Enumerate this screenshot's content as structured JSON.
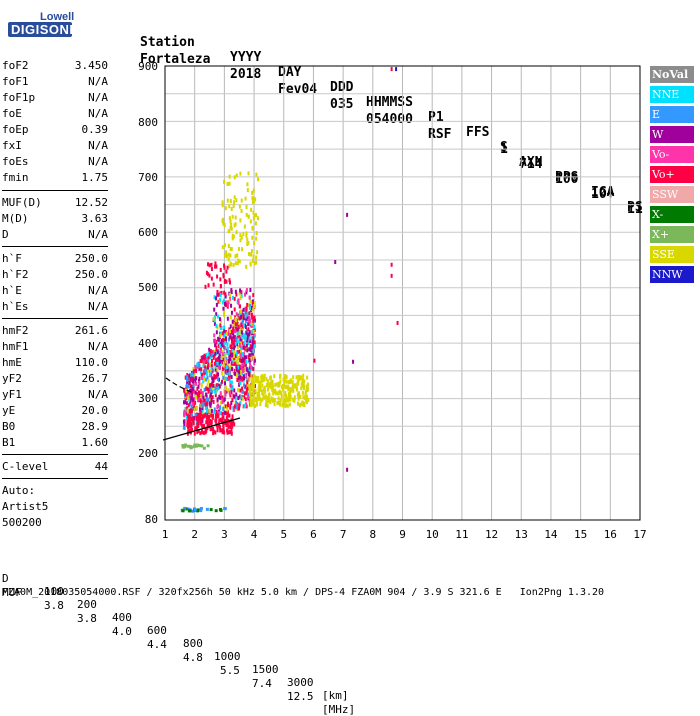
{
  "logo": {
    "line1": "Lowell",
    "line2": "DIGISONDE"
  },
  "header": {
    "labels": [
      "Station",
      "YYYY",
      "DAY",
      "DDD",
      "HHMMSS",
      "P1",
      "FFS",
      "S",
      "AXN",
      "PPS",
      "IGA",
      "PS"
    ],
    "values": [
      "Fortaleza",
      "2018",
      "Fev04",
      "035",
      "054000",
      "RSF",
      "1",
      "714",
      "100",
      "10+",
      "11"
    ]
  },
  "params": {
    "group1": [
      {
        "name": "foF2",
        "value": "3.450"
      },
      {
        "name": "foF1",
        "value": "N/A"
      },
      {
        "name": "foF1p",
        "value": "N/A"
      },
      {
        "name": "foE",
        "value": "N/A"
      },
      {
        "name": "foEp",
        "value": "0.39"
      },
      {
        "name": "fxI",
        "value": "N/A"
      },
      {
        "name": "foEs",
        "value": "N/A"
      },
      {
        "name": "fmin",
        "value": "1.75"
      }
    ],
    "group2": [
      {
        "name": "MUF(D)",
        "value": "12.52"
      },
      {
        "name": "M(D)",
        "value": "3.63"
      },
      {
        "name": "D",
        "value": "N/A"
      }
    ],
    "group3": [
      {
        "name": "h`F",
        "value": "250.0"
      },
      {
        "name": "h`F2",
        "value": "250.0"
      },
      {
        "name": "h`E",
        "value": "N/A"
      },
      {
        "name": "h`Es",
        "value": "N/A"
      }
    ],
    "group4": [
      {
        "name": "hmF2",
        "value": "261.6"
      },
      {
        "name": "hmF1",
        "value": "N/A"
      },
      {
        "name": "hmE",
        "value": "110.0"
      },
      {
        "name": "yF2",
        "value": "26.7"
      },
      {
        "name": "yF1",
        "value": "N/A"
      },
      {
        "name": "yE",
        "value": "20.0"
      },
      {
        "name": "B0",
        "value": "28.9"
      },
      {
        "name": "B1",
        "value": "1.60"
      }
    ],
    "clevel": {
      "name": "C-level",
      "value": "44"
    },
    "auto": [
      "Auto:",
      "Artist5",
      "500200"
    ]
  },
  "legend": [
    {
      "label": "NoVal",
      "color": "#8c8c8c"
    },
    {
      "label": "NNE",
      "color": "#00e0ff"
    },
    {
      "label": "E",
      "color": "#3399ff"
    },
    {
      "label": "W",
      "color": "#a0009c"
    },
    {
      "label": "Vo-",
      "color": "#ff33aa"
    },
    {
      "label": "Vo+",
      "color": "#ff0044"
    },
    {
      "label": "SSW",
      "color": "#f0a8a8"
    },
    {
      "label": "X-",
      "color": "#007a00"
    },
    {
      "label": "X+",
      "color": "#7ab85a"
    },
    {
      "label": "SSE",
      "color": "#d8d800"
    },
    {
      "label": "NNW",
      "color": "#1a1acc"
    }
  ],
  "chart_data": {
    "type": "scatter",
    "x_ticks": [
      "1",
      "2",
      "3",
      "4",
      "5",
      "6",
      "7",
      "8",
      "9",
      "10",
      "11",
      "12",
      "13",
      "14",
      "15",
      "16",
      "17"
    ],
    "y_ticks": [
      "80",
      "200",
      "300",
      "400",
      "500",
      "600",
      "700",
      "800",
      "900"
    ],
    "xlim": [
      1,
      17
    ],
    "ylim": [
      80,
      900
    ],
    "grid": true
  },
  "footer": {
    "d_label": "D",
    "d_values": [
      "100",
      "200",
      "400",
      "600",
      "800",
      "1000",
      "1500",
      "3000",
      "[km]"
    ],
    "muf_label": "MUF",
    "muf_values": [
      "3.8",
      "3.8",
      "4.0",
      "4.4",
      "4.8",
      "5.5",
      "7.4",
      "12.5",
      "[MHz]"
    ],
    "info": "FZA0M_2018035054000.RSF / 320fx256h 50 kHz 5.0 km / DPS-4 FZA0M 904 / 3.9 S 321.6 E   Ion2Png 1.3.20"
  }
}
